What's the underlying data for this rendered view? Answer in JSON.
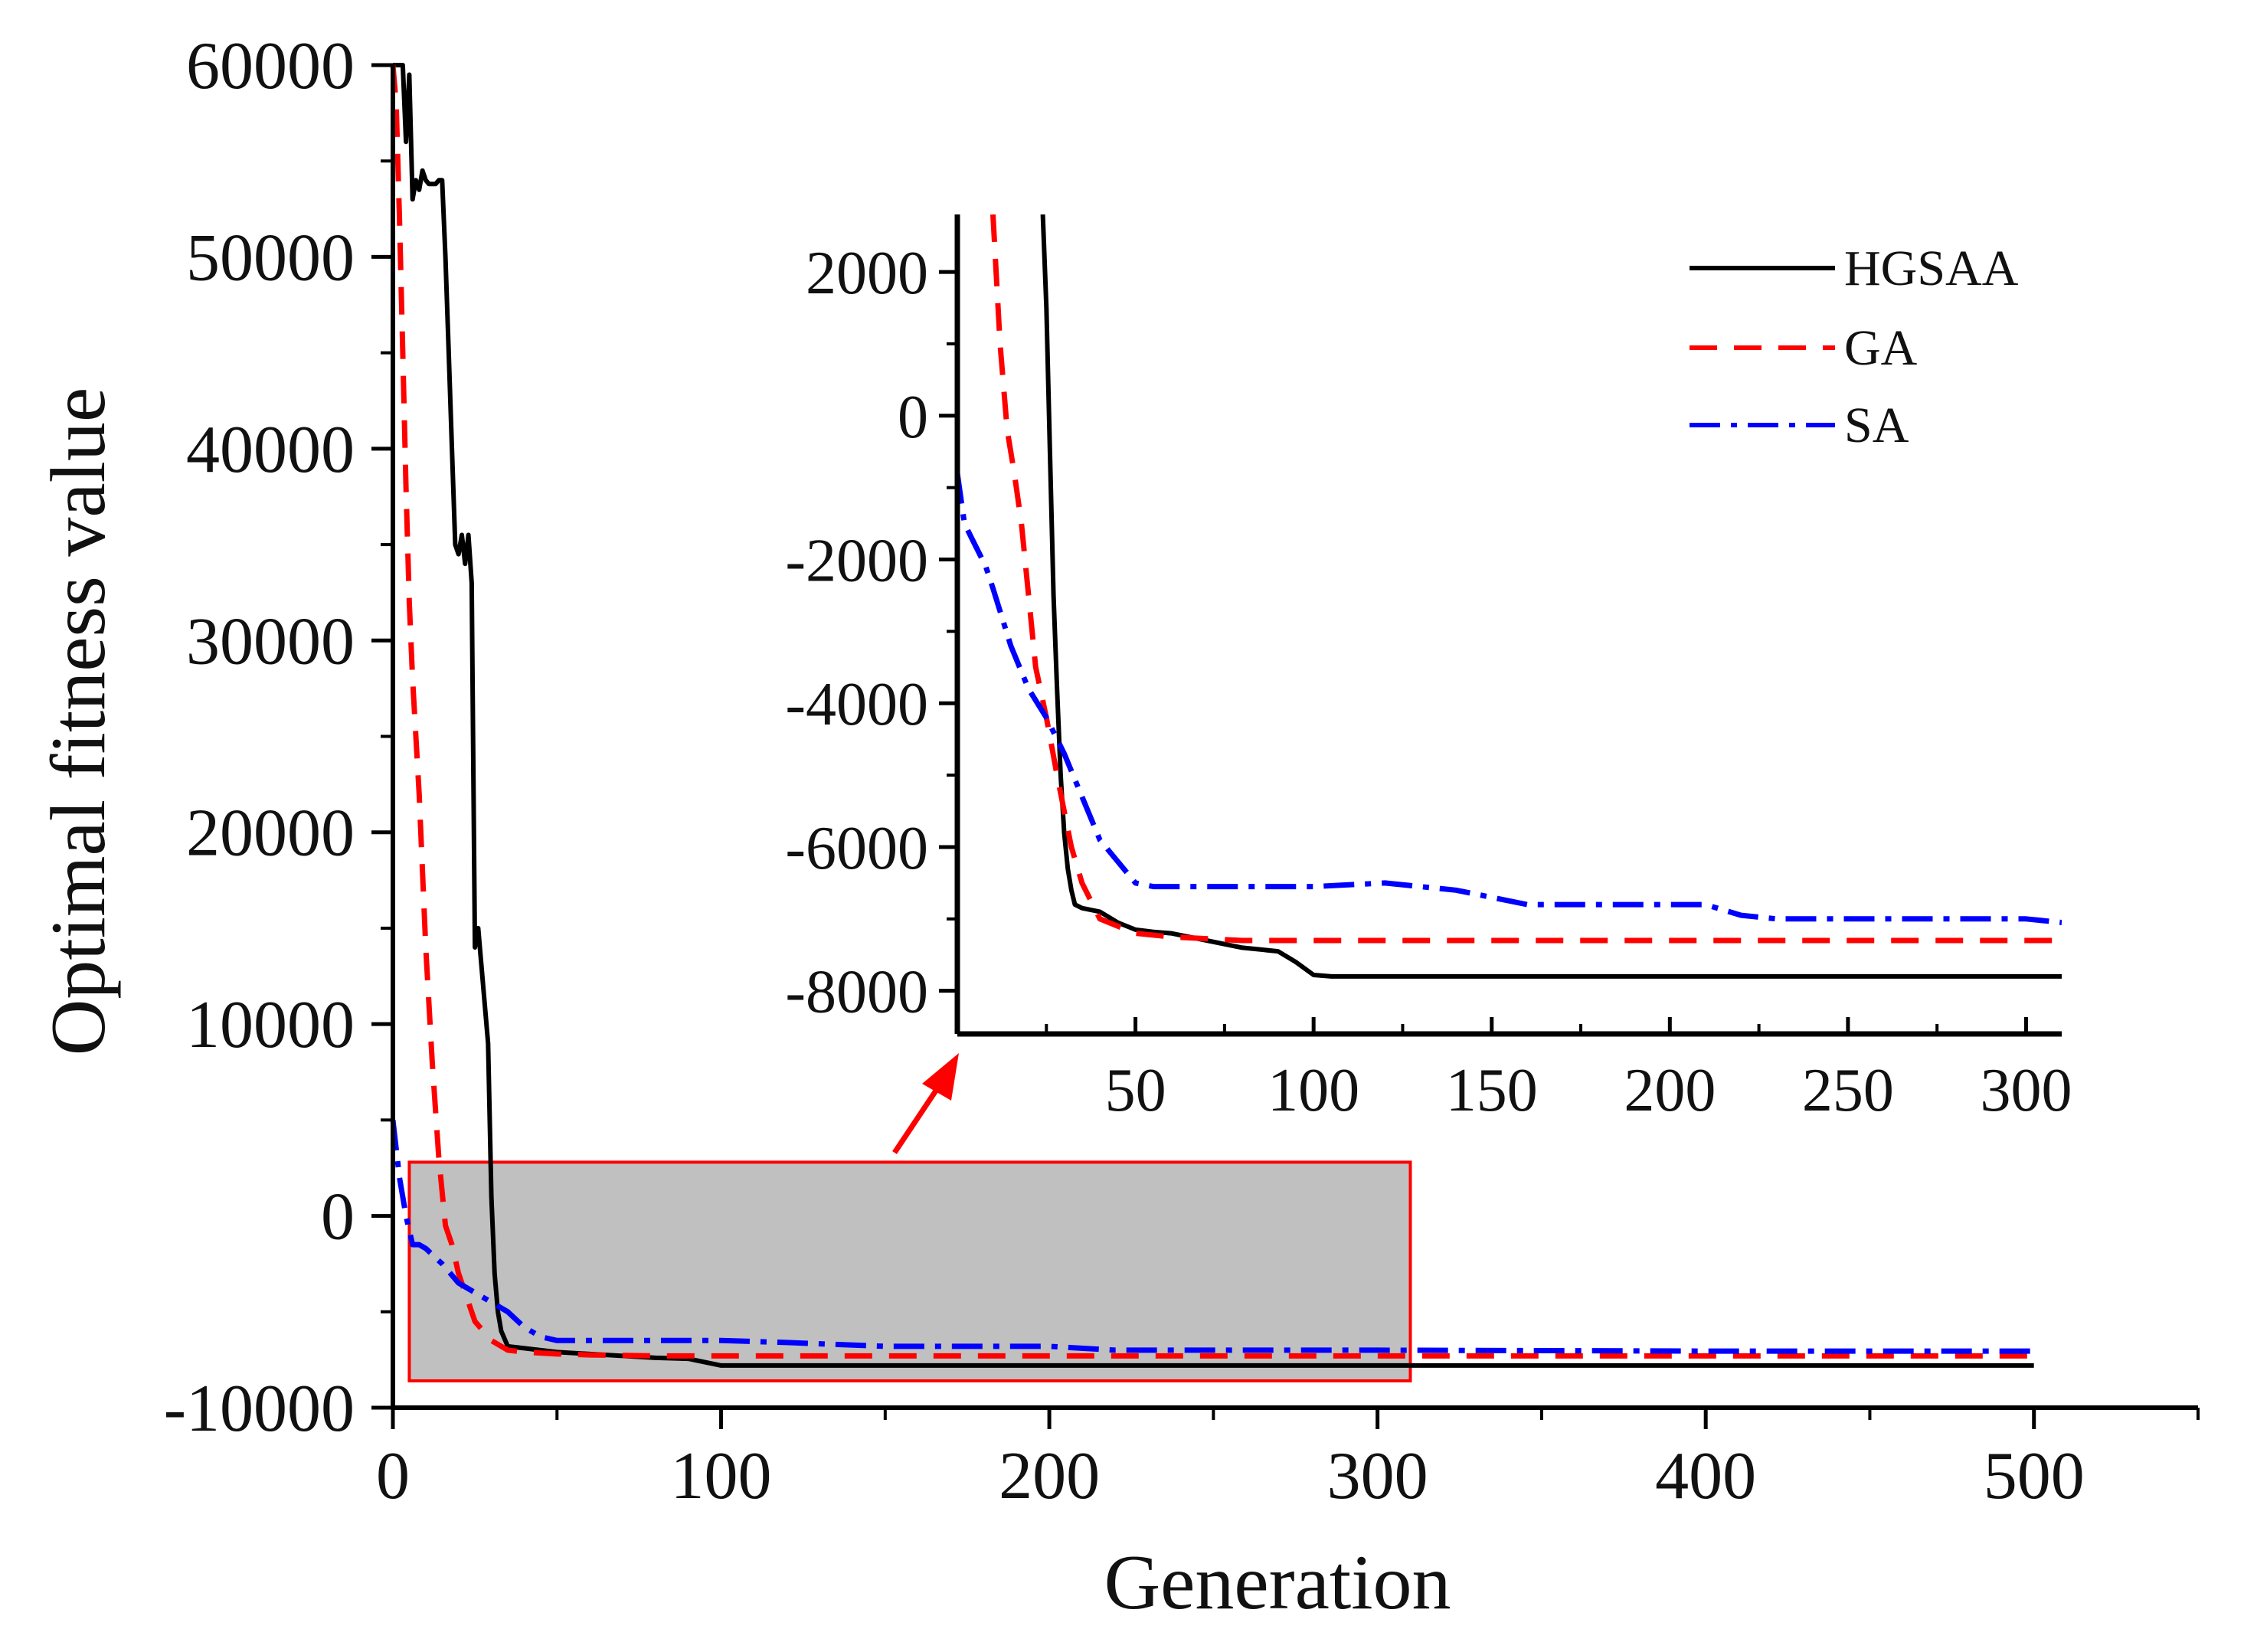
{
  "chart_data": [
    {
      "id": "main",
      "type": "line",
      "title": "",
      "xlabel": "Generation",
      "ylabel": "Optimal fitness value",
      "xlim": [
        0,
        550
      ],
      "ylim": [
        -10000,
        60000
      ],
      "xticks": [
        0,
        100,
        200,
        300,
        400,
        500
      ],
      "yticks": [
        -10000,
        0,
        10000,
        20000,
        30000,
        40000,
        50000,
        60000
      ],
      "grid": false,
      "series": [
        {
          "name": "HGSAA",
          "color": "#000000",
          "dash": "solid",
          "x": [
            0,
            3,
            4,
            5,
            6,
            7,
            8,
            9,
            10,
            11,
            12,
            13,
            14,
            15,
            16,
            17,
            18,
            19,
            20,
            21,
            22,
            23,
            24,
            25,
            26,
            27,
            28,
            29,
            30,
            31,
            32,
            33,
            35,
            40,
            50,
            60,
            70,
            80,
            90,
            100,
            110,
            150,
            200,
            300,
            400,
            500
          ],
          "y": [
            60000,
            60000,
            56000,
            59500,
            53000,
            54000,
            53500,
            54500,
            54000,
            53800,
            53800,
            53800,
            54000,
            54000,
            50000,
            45000,
            40000,
            35000,
            34500,
            35500,
            34000,
            35500,
            33000,
            14000,
            15000,
            13000,
            11000,
            9000,
            1000,
            -3000,
            -5000,
            -6000,
            -6800,
            -6900,
            -7100,
            -7200,
            -7300,
            -7400,
            -7450,
            -7800,
            -7800,
            -7800,
            -7800,
            -7800,
            -7800,
            -7800
          ]
        },
        {
          "name": "GA",
          "color": "#ff0000",
          "dash": "dashed",
          "x": [
            0,
            1,
            2,
            3,
            4,
            5,
            6,
            8,
            10,
            12,
            14,
            16,
            18,
            20,
            22,
            25,
            30,
            35,
            40,
            50,
            60,
            80,
            100,
            150,
            200,
            300,
            400,
            500
          ],
          "y": [
            60000,
            58000,
            52000,
            45000,
            38000,
            32000,
            28000,
            22000,
            14000,
            8000,
            3000,
            -500,
            -1500,
            -3000,
            -4000,
            -5500,
            -6500,
            -7000,
            -7100,
            -7200,
            -7250,
            -7300,
            -7300,
            -7300,
            -7300,
            -7300,
            -7300,
            -7300
          ]
        },
        {
          "name": "SA",
          "color": "#0000ff",
          "dash": "dashdot",
          "x": [
            0,
            2,
            4,
            6,
            8,
            10,
            15,
            20,
            25,
            30,
            35,
            40,
            45,
            50,
            60,
            80,
            100,
            120,
            150,
            200,
            220,
            250,
            300,
            400,
            500
          ],
          "y": [
            5000,
            2000,
            0,
            -1500,
            -1500,
            -1700,
            -2500,
            -3500,
            -4000,
            -4500,
            -5000,
            -5800,
            -6300,
            -6500,
            -6500,
            -6500,
            -6500,
            -6600,
            -6800,
            -6800,
            -7000,
            -7000,
            -7000,
            -7050,
            -7050
          ]
        }
      ]
    },
    {
      "id": "inset",
      "type": "line",
      "title": "",
      "xlabel": "",
      "ylabel": "",
      "xlim": [
        0,
        310
      ],
      "ylim": [
        -8600,
        2800
      ],
      "xticks": [
        50,
        100,
        150,
        200,
        250,
        300
      ],
      "yticks": [
        -8000,
        -6000,
        -4000,
        -2000,
        0,
        2000
      ],
      "grid": false,
      "series": [
        {
          "name": "HGSAA",
          "color": "#000000",
          "dash": "solid",
          "x": [
            24,
            25,
            26,
            27,
            28,
            29,
            30,
            31,
            32,
            33,
            35,
            40,
            45,
            50,
            55,
            60,
            70,
            80,
            90,
            95,
            100,
            105,
            110,
            150,
            200,
            250,
            300,
            310
          ],
          "y": [
            2800,
            1500,
            -500,
            -2500,
            -3800,
            -5000,
            -5800,
            -6300,
            -6600,
            -6800,
            -6850,
            -6900,
            -7050,
            -7150,
            -7180,
            -7200,
            -7300,
            -7400,
            -7450,
            -7600,
            -7780,
            -7800,
            -7800,
            -7800,
            -7800,
            -7800,
            -7800,
            -7800
          ]
        },
        {
          "name": "GA",
          "color": "#ff0000",
          "dash": "dashed",
          "x": [
            10,
            12,
            14,
            16,
            18,
            20,
            22,
            25,
            28,
            30,
            32,
            35,
            40,
            50,
            60,
            80,
            100,
            150,
            200,
            250,
            300,
            310
          ],
          "y": [
            2800,
            1000,
            -200,
            -800,
            -1500,
            -2500,
            -3500,
            -4200,
            -5000,
            -5500,
            -6000,
            -6500,
            -7000,
            -7200,
            -7250,
            -7300,
            -7300,
            -7300,
            -7300,
            -7300,
            -7300,
            -7300
          ]
        },
        {
          "name": "SA",
          "color": "#0000ff",
          "dash": "dashdot",
          "x": [
            0,
            2,
            4,
            6,
            8,
            10,
            15,
            20,
            25,
            30,
            35,
            40,
            45,
            50,
            55,
            60,
            80,
            100,
            120,
            140,
            160,
            180,
            200,
            210,
            220,
            230,
            250,
            280,
            300,
            310
          ],
          "y": [
            -800,
            -1500,
            -1700,
            -1900,
            -2100,
            -2400,
            -3200,
            -3800,
            -4200,
            -4700,
            -5300,
            -5900,
            -6200,
            -6500,
            -6550,
            -6550,
            -6550,
            -6550,
            -6500,
            -6600,
            -6800,
            -6800,
            -6800,
            -6800,
            -6950,
            -7000,
            -7000,
            -7000,
            -7000,
            -7050
          ]
        }
      ]
    }
  ],
  "zoom_box": {
    "x": [
      5,
      310
    ],
    "y": [
      -8600,
      2800
    ],
    "fill": "#c0c0c0",
    "stroke": "#ff0000"
  },
  "arrow_color": "#ff0000"
}
